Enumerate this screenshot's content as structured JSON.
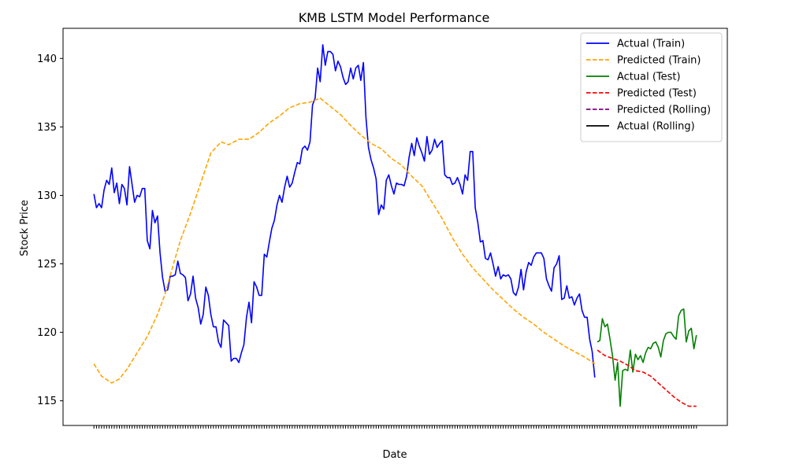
{
  "chart_data": {
    "type": "line",
    "title": "KMB LSTM Model Performance",
    "xlabel": "Date",
    "ylabel": "Stock Price",
    "ylim": [
      113.2,
      142.2
    ],
    "x_range": [
      0,
      237
    ],
    "y_ticks": [
      115,
      120,
      125,
      130,
      135,
      140
    ],
    "legend_position": "top-right",
    "grid": false,
    "series": [
      {
        "name": "Actual (Train)",
        "color": "#0000ff",
        "style": "solid",
        "points": [
          [
            0,
            130.1
          ],
          [
            1,
            129.1
          ],
          [
            2,
            129.4
          ],
          [
            3,
            129.1
          ],
          [
            4,
            130.4
          ],
          [
            5,
            131.1
          ],
          [
            6,
            130.8
          ],
          [
            7,
            132.0
          ],
          [
            8,
            130.2
          ],
          [
            9,
            130.9
          ],
          [
            10,
            129.4
          ],
          [
            11,
            130.8
          ],
          [
            12,
            130.5
          ],
          [
            13,
            129.3
          ],
          [
            14,
            132.1
          ],
          [
            15,
            130.8
          ],
          [
            16,
            129.5
          ],
          [
            17,
            130.0
          ],
          [
            18,
            129.9
          ],
          [
            19,
            130.5
          ],
          [
            20,
            130.5
          ],
          [
            21,
            126.7
          ],
          [
            22,
            126.1
          ],
          [
            23,
            128.9
          ],
          [
            24,
            128.0
          ],
          [
            25,
            128.5
          ],
          [
            26,
            125.8
          ],
          [
            27,
            124.0
          ],
          [
            28,
            123.0
          ],
          [
            29,
            123.1
          ],
          [
            30,
            124.1
          ],
          [
            31,
            124.1
          ],
          [
            32,
            124.2
          ],
          [
            33,
            125.2
          ],
          [
            34,
            124.3
          ],
          [
            35,
            124.2
          ],
          [
            36,
            124.0
          ],
          [
            37,
            122.3
          ],
          [
            38,
            122.8
          ],
          [
            39,
            124.1
          ],
          [
            40,
            122.5
          ],
          [
            41,
            121.8
          ],
          [
            42,
            120.6
          ],
          [
            43,
            121.3
          ],
          [
            44,
            123.3
          ],
          [
            45,
            122.7
          ],
          [
            46,
            121.3
          ],
          [
            47,
            120.4
          ],
          [
            48,
            120.4
          ],
          [
            49,
            119.3
          ],
          [
            50,
            118.9
          ],
          [
            51,
            120.9
          ],
          [
            52,
            120.7
          ],
          [
            53,
            120.5
          ],
          [
            54,
            117.9
          ],
          [
            55,
            118.1
          ],
          [
            56,
            118.1
          ],
          [
            57,
            117.8
          ],
          [
            58,
            118.5
          ],
          [
            59,
            119.1
          ],
          [
            60,
            121.1
          ],
          [
            61,
            122.2
          ],
          [
            62,
            120.7
          ],
          [
            63,
            123.7
          ],
          [
            64,
            123.3
          ],
          [
            65,
            122.7
          ],
          [
            66,
            122.7
          ],
          [
            67,
            125.7
          ],
          [
            68,
            125.5
          ],
          [
            69,
            126.6
          ],
          [
            70,
            127.6
          ],
          [
            71,
            128.2
          ],
          [
            72,
            129.3
          ],
          [
            73,
            130.0
          ],
          [
            74,
            129.5
          ],
          [
            75,
            130.6
          ],
          [
            76,
            131.4
          ],
          [
            77,
            130.6
          ],
          [
            78,
            130.9
          ],
          [
            79,
            131.7
          ],
          [
            80,
            132.4
          ],
          [
            81,
            132.3
          ],
          [
            82,
            133.4
          ],
          [
            83,
            133.6
          ],
          [
            84,
            133.3
          ],
          [
            85,
            133.9
          ],
          [
            86,
            136.6
          ],
          [
            87,
            137.1
          ],
          [
            88,
            139.3
          ],
          [
            89,
            138.3
          ],
          [
            90,
            141.0
          ],
          [
            91,
            139.5
          ],
          [
            92,
            140.5
          ],
          [
            93,
            140.5
          ],
          [
            94,
            140.3
          ],
          [
            95,
            139.1
          ],
          [
            96,
            139.8
          ],
          [
            97,
            139.4
          ],
          [
            98,
            138.6
          ],
          [
            99,
            138.1
          ],
          [
            100,
            138.3
          ],
          [
            101,
            139.3
          ],
          [
            102,
            138.5
          ],
          [
            103,
            139.3
          ],
          [
            104,
            139.5
          ],
          [
            105,
            138.4
          ],
          [
            106,
            139.7
          ],
          [
            107,
            135.7
          ],
          [
            108,
            133.5
          ],
          [
            109,
            132.6
          ],
          [
            110,
            132.0
          ],
          [
            111,
            131.2
          ],
          [
            112,
            128.6
          ],
          [
            113,
            129.3
          ],
          [
            114,
            129.0
          ],
          [
            115,
            131.1
          ],
          [
            116,
            131.5
          ],
          [
            117,
            130.7
          ],
          [
            118,
            130.1
          ],
          [
            119,
            130.9
          ],
          [
            120,
            130.8
          ],
          [
            121,
            130.8
          ],
          [
            122,
            130.7
          ],
          [
            123,
            131.4
          ],
          [
            124,
            132.8
          ],
          [
            125,
            133.8
          ],
          [
            126,
            132.9
          ],
          [
            127,
            134.2
          ],
          [
            128,
            133.6
          ],
          [
            129,
            133.1
          ],
          [
            130,
            132.5
          ],
          [
            131,
            134.3
          ],
          [
            132,
            133.0
          ],
          [
            133,
            133.3
          ],
          [
            134,
            134.1
          ],
          [
            135,
            133.5
          ],
          [
            136,
            133.8
          ],
          [
            137,
            134.0
          ],
          [
            138,
            131.5
          ],
          [
            139,
            131.3
          ],
          [
            140,
            131.3
          ],
          [
            141,
            130.8
          ],
          [
            142,
            130.9
          ],
          [
            143,
            131.3
          ],
          [
            144,
            130.8
          ],
          [
            145,
            130.1
          ],
          [
            146,
            131.5
          ],
          [
            147,
            131.1
          ],
          [
            148,
            133.2
          ],
          [
            149,
            133.2
          ],
          [
            150,
            129.1
          ],
          [
            151,
            128.0
          ],
          [
            152,
            126.6
          ],
          [
            153,
            126.7
          ],
          [
            154,
            125.4
          ],
          [
            155,
            125.3
          ],
          [
            156,
            125.8
          ],
          [
            157,
            125.0
          ],
          [
            158,
            124.1
          ],
          [
            159,
            124.8
          ],
          [
            160,
            123.9
          ],
          [
            161,
            124.2
          ],
          [
            162,
            124.1
          ],
          [
            163,
            124.2
          ],
          [
            164,
            123.9
          ],
          [
            165,
            122.9
          ],
          [
            166,
            122.7
          ],
          [
            167,
            123.3
          ],
          [
            168,
            124.6
          ],
          [
            169,
            123.1
          ],
          [
            170,
            124.4
          ],
          [
            171,
            125.1
          ],
          [
            172,
            124.9
          ],
          [
            173,
            125.5
          ],
          [
            174,
            125.8
          ],
          [
            175,
            125.8
          ],
          [
            176,
            125.8
          ],
          [
            177,
            125.4
          ],
          [
            178,
            123.9
          ],
          [
            179,
            123.4
          ],
          [
            180,
            123.0
          ],
          [
            181,
            124.7
          ],
          [
            182,
            125.0
          ],
          [
            183,
            125.6
          ],
          [
            184,
            122.4
          ],
          [
            185,
            122.5
          ],
          [
            186,
            123.4
          ],
          [
            187,
            122.5
          ],
          [
            188,
            122.6
          ],
          [
            189,
            122.0
          ],
          [
            190,
            122.5
          ],
          [
            191,
            122.8
          ],
          [
            192,
            121.6
          ],
          [
            193,
            121.1
          ],
          [
            194,
            121.1
          ],
          [
            195,
            119.5
          ],
          [
            196,
            118.6
          ],
          [
            197,
            116.7
          ]
        ]
      },
      {
        "name": "Predicted (Train)",
        "color": "#ffa500",
        "style": "dashed",
        "points": [
          [
            0,
            117.7
          ],
          [
            3,
            116.8
          ],
          [
            7,
            116.3
          ],
          [
            10,
            116.6
          ],
          [
            13,
            117.3
          ],
          [
            17,
            118.5
          ],
          [
            21,
            119.7
          ],
          [
            25,
            121.3
          ],
          [
            28,
            122.8
          ],
          [
            31,
            124.8
          ],
          [
            34,
            126.7
          ],
          [
            38,
            128.7
          ],
          [
            42,
            130.9
          ],
          [
            46,
            133.1
          ],
          [
            50,
            133.9
          ],
          [
            53,
            133.7
          ],
          [
            57,
            134.1
          ],
          [
            61,
            134.1
          ],
          [
            65,
            134.6
          ],
          [
            69,
            135.3
          ],
          [
            73,
            135.8
          ],
          [
            77,
            136.4
          ],
          [
            81,
            136.7
          ],
          [
            85,
            136.8
          ],
          [
            89,
            137.1
          ],
          [
            93,
            136.5
          ],
          [
            97,
            135.9
          ],
          [
            101,
            135.1
          ],
          [
            105,
            134.4
          ],
          [
            109,
            133.8
          ],
          [
            113,
            133.4
          ],
          [
            117,
            132.7
          ],
          [
            121,
            132.2
          ],
          [
            125,
            131.4
          ],
          [
            129,
            130.7
          ],
          [
            133,
            129.5
          ],
          [
            137,
            128.3
          ],
          [
            141,
            126.9
          ],
          [
            145,
            125.7
          ],
          [
            149,
            124.7
          ],
          [
            153,
            123.9
          ],
          [
            157,
            123.1
          ],
          [
            161,
            122.4
          ],
          [
            165,
            121.7
          ],
          [
            169,
            121.1
          ],
          [
            173,
            120.6
          ],
          [
            177,
            120.0
          ],
          [
            181,
            119.5
          ],
          [
            185,
            119.0
          ],
          [
            189,
            118.6
          ],
          [
            193,
            118.2
          ],
          [
            197,
            117.7
          ]
        ]
      },
      {
        "name": "Actual (Test)",
        "color": "#008000",
        "style": "solid",
        "points": [
          [
            198,
            119.3
          ],
          [
            199,
            119.4
          ],
          [
            200,
            121.0
          ],
          [
            201,
            120.4
          ],
          [
            202,
            120.6
          ],
          [
            203,
            119.5
          ],
          [
            204,
            118.3
          ],
          [
            205,
            116.5
          ],
          [
            206,
            117.8
          ],
          [
            207,
            114.6
          ],
          [
            208,
            117.2
          ],
          [
            209,
            117.3
          ],
          [
            210,
            117.2
          ],
          [
            211,
            118.7
          ],
          [
            212,
            117.1
          ],
          [
            213,
            118.4
          ],
          [
            214,
            118.0
          ],
          [
            215,
            118.3
          ],
          [
            216,
            117.8
          ],
          [
            217,
            118.5
          ],
          [
            218,
            118.9
          ],
          [
            219,
            118.8
          ],
          [
            220,
            119.2
          ],
          [
            221,
            119.3
          ],
          [
            222,
            118.9
          ],
          [
            223,
            118.2
          ],
          [
            224,
            119.4
          ],
          [
            225,
            119.9
          ],
          [
            226,
            120.0
          ],
          [
            227,
            120.0
          ],
          [
            228,
            119.7
          ],
          [
            229,
            119.5
          ],
          [
            230,
            121.2
          ],
          [
            231,
            121.6
          ],
          [
            232,
            121.7
          ],
          [
            233,
            119.3
          ],
          [
            234,
            120.1
          ],
          [
            235,
            120.3
          ],
          [
            236,
            118.8
          ],
          [
            237,
            119.8
          ]
        ]
      },
      {
        "name": "Predicted (Test)",
        "color": "#ff0000",
        "style": "dashed",
        "points": [
          [
            198,
            118.7
          ],
          [
            201,
            118.3
          ],
          [
            204,
            118.1
          ],
          [
            207,
            117.9
          ],
          [
            210,
            117.6
          ],
          [
            213,
            117.2
          ],
          [
            216,
            117.1
          ],
          [
            219,
            116.8
          ],
          [
            222,
            116.3
          ],
          [
            225,
            115.8
          ],
          [
            228,
            115.3
          ],
          [
            231,
            114.9
          ],
          [
            234,
            114.6
          ],
          [
            237,
            114.6
          ]
        ]
      },
      {
        "name": "Predicted (Rolling)",
        "color": "#800080",
        "style": "dashed",
        "points": []
      },
      {
        "name": "Actual (Rolling)",
        "color": "#000000",
        "style": "solid",
        "points": []
      }
    ]
  }
}
